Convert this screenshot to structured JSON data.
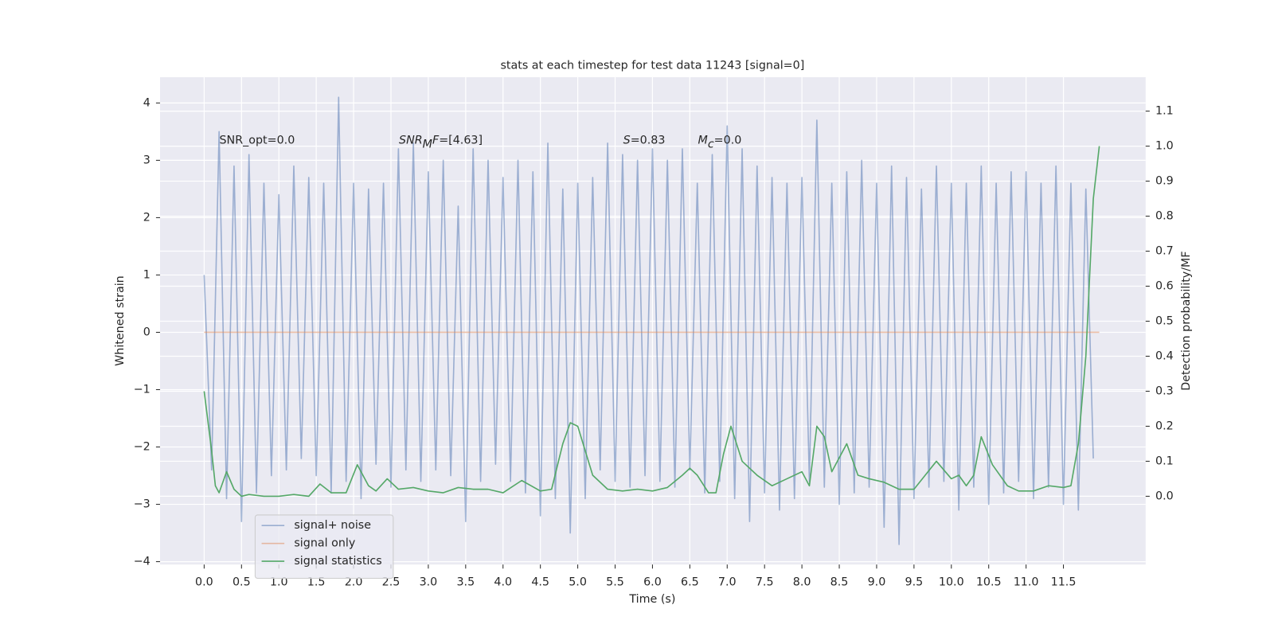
{
  "chart_data": {
    "type": "line",
    "title": "stats at each timestep for test data 11243 [signal=0]",
    "xlabel": "Time (s)",
    "ylabel": "Whitened strain",
    "y2label": "Detection probability/MF",
    "xlim": [
      -0.59,
      12.6
    ],
    "ylim": [
      -4.05,
      4.45
    ],
    "y2lim": [
      -0.195,
      1.197
    ],
    "xticks": [
      {
        "value": 0,
        "label": "0.0"
      },
      0.5,
      {
        "value": 1,
        "label": "1.0"
      },
      1.5,
      {
        "value": 2,
        "label": "2.0"
      },
      2.5,
      {
        "value": 3,
        "label": "3.0"
      },
      3.5,
      {
        "value": 4,
        "label": "4.0"
      },
      4.5,
      {
        "value": 5,
        "label": "5.0"
      },
      5.5,
      {
        "value": 6,
        "label": "6.0"
      },
      6.5,
      {
        "value": 7,
        "label": "7.0"
      },
      7.5,
      {
        "value": 8,
        "label": "8.0"
      },
      8.5,
      {
        "value": 9,
        "label": "9.0"
      },
      9.5,
      {
        "value": 10,
        "label": "10.0"
      },
      10.5,
      {
        "value": 11,
        "label": "11.0"
      },
      11.5
    ],
    "yticks": [
      {
        "value": -4,
        "label": "−4"
      },
      {
        "value": -3,
        "label": "−3"
      },
      {
        "value": -2,
        "label": "−2"
      },
      {
        "value": -1,
        "label": "−1"
      },
      0,
      1,
      2,
      3,
      4
    ],
    "y2ticks": [
      {
        "value": 0,
        "label": "0.0"
      },
      0.1,
      0.2,
      0.3,
      0.4,
      0.5,
      0.6,
      0.7,
      0.8,
      0.9,
      {
        "value": 1,
        "label": "1.0"
      },
      1.1
    ],
    "grid": true,
    "legend": "lower left",
    "annotations": [
      [
        {
          "text": "SNR_opt=0.0"
        }
      ],
      [
        {
          "text": "SNR",
          "style": "italic"
        },
        {
          "text": "M",
          "style": "italic-sub"
        },
        {
          "text": "F",
          "style": "italic"
        },
        {
          "text": "=[4.63]"
        }
      ],
      [
        {
          "text": "S",
          "style": "italic"
        },
        {
          "text": "=0.83"
        }
      ],
      [
        {
          "text": "M",
          "style": "italic"
        },
        {
          "text": "c",
          "style": "italic-sub"
        },
        {
          "text": "=0.0"
        }
      ]
    ],
    "series": [
      {
        "name": "signal+ noise",
        "color": "#4c72b0",
        "opacity": 0.5,
        "x": [
          0,
          0.1,
          0.2,
          0.3,
          0.4,
          0.5,
          0.6,
          0.7,
          0.8,
          0.9,
          1,
          1.1,
          1.2,
          1.3,
          1.4,
          1.5,
          1.6,
          1.7,
          1.8,
          1.9,
          2,
          2.1,
          2.2,
          2.3,
          2.4,
          2.5,
          2.6,
          2.7,
          2.8,
          2.9,
          3,
          3.1,
          3.2,
          3.3,
          3.4,
          3.5,
          3.6,
          3.7,
          3.8,
          3.9,
          4,
          4.1,
          4.2,
          4.3,
          4.4,
          4.5,
          4.6,
          4.7,
          4.8,
          4.9,
          5,
          5.1,
          5.2,
          5.3,
          5.4,
          5.5,
          5.6,
          5.7,
          5.8,
          5.9,
          6,
          6.1,
          6.2,
          6.3,
          6.4,
          6.5,
          6.6,
          6.7,
          6.8,
          6.9,
          7,
          7.1,
          7.2,
          7.3,
          7.4,
          7.5,
          7.6,
          7.7,
          7.8,
          7.9,
          8,
          8.1,
          8.2,
          8.3,
          8.4,
          8.5,
          8.6,
          8.7,
          8.8,
          8.9,
          9,
          9.1,
          9.2,
          9.3,
          9.4,
          9.5,
          9.6,
          9.7,
          9.8,
          9.9,
          10,
          10.1,
          10.2,
          10.3,
          10.4,
          10.5,
          10.6,
          10.7,
          10.8,
          10.9,
          11,
          11.1,
          11.2,
          11.3,
          11.4,
          11.5,
          11.6,
          11.7,
          11.8,
          11.9
        ],
        "values": [
          1.0,
          -2.4,
          3.5,
          -2.9,
          2.9,
          -3.3,
          3.1,
          -2.8,
          2.6,
          -2.5,
          2.4,
          -2.4,
          2.9,
          -2.2,
          2.7,
          -2.5,
          2.6,
          -2.8,
          4.1,
          -2.6,
          2.6,
          -2.9,
          2.5,
          -2.3,
          2.6,
          -2.7,
          3.2,
          -2.4,
          3.3,
          -2.6,
          2.8,
          -2.4,
          3.0,
          -2.5,
          2.2,
          -3.3,
          3.2,
          -2.6,
          3.0,
          -2.3,
          2.7,
          -2.6,
          3.0,
          -2.8,
          2.8,
          -3.2,
          3.3,
          -2.9,
          2.5,
          -3.5,
          2.6,
          -2.9,
          2.7,
          -2.4,
          3.3,
          -2.6,
          3.1,
          -2.7,
          3.0,
          -2.5,
          3.2,
          -2.6,
          3.0,
          -2.7,
          3.2,
          -2.4,
          2.6,
          -2.8,
          3.1,
          -2.6,
          3.6,
          -2.9,
          3.2,
          -3.3,
          2.9,
          -2.8,
          2.7,
          -3.1,
          2.6,
          -2.9,
          2.7,
          -2.6,
          3.7,
          -2.7,
          2.6,
          -3.0,
          2.8,
          -2.8,
          3.0,
          -2.7,
          2.6,
          -3.4,
          2.9,
          -3.7,
          2.7,
          -2.9,
          2.5,
          -2.7,
          2.9,
          -2.6,
          2.6,
          -3.1,
          2.6,
          -2.7,
          2.9,
          -3.0,
          2.6,
          -2.8,
          2.8,
          -2.6,
          2.8,
          -2.9,
          2.6,
          -2.7,
          2.9,
          -3.0,
          2.6,
          -3.1,
          2.5,
          -2.2
        ]
      },
      {
        "name": "signal only",
        "color": "#dd8452",
        "opacity": 0.5,
        "x": [
          0,
          11.98
        ],
        "values": [
          0,
          0
        ]
      },
      {
        "name": "signal statistics",
        "color": "#55a868",
        "axis": "y2",
        "x": [
          0,
          0.1,
          0.15,
          0.2,
          0.3,
          0.4,
          0.5,
          0.6,
          0.8,
          1.0,
          1.2,
          1.4,
          1.55,
          1.7,
          1.9,
          2.05,
          2.2,
          2.3,
          2.45,
          2.6,
          2.8,
          3.0,
          3.2,
          3.4,
          3.6,
          3.8,
          4.0,
          4.25,
          4.5,
          4.65,
          4.8,
          4.9,
          5.0,
          5.1,
          5.2,
          5.4,
          5.6,
          5.8,
          6.0,
          6.2,
          6.4,
          6.5,
          6.6,
          6.75,
          6.85,
          6.95,
          7.05,
          7.2,
          7.4,
          7.6,
          7.8,
          8.0,
          8.1,
          8.2,
          8.3,
          8.4,
          8.6,
          8.75,
          8.9,
          9.1,
          9.3,
          9.5,
          9.65,
          9.8,
          10.0,
          10.1,
          10.2,
          10.3,
          10.4,
          10.55,
          10.75,
          10.9,
          11.1,
          11.3,
          11.5,
          11.6,
          11.7,
          11.8,
          11.9,
          11.98
        ],
        "values": [
          0.3,
          0.13,
          0.03,
          0.01,
          0.07,
          0.02,
          0.0,
          0.005,
          0.0,
          0.0,
          0.005,
          0.0,
          0.035,
          0.01,
          0.01,
          0.09,
          0.03,
          0.015,
          0.05,
          0.02,
          0.025,
          0.015,
          0.01,
          0.025,
          0.02,
          0.02,
          0.01,
          0.045,
          0.015,
          0.02,
          0.15,
          0.21,
          0.2,
          0.13,
          0.06,
          0.02,
          0.015,
          0.02,
          0.015,
          0.025,
          0.06,
          0.08,
          0.06,
          0.01,
          0.01,
          0.12,
          0.2,
          0.1,
          0.06,
          0.03,
          0.05,
          0.07,
          0.03,
          0.2,
          0.17,
          0.07,
          0.15,
          0.06,
          0.05,
          0.04,
          0.02,
          0.02,
          0.06,
          0.1,
          0.05,
          0.06,
          0.03,
          0.06,
          0.17,
          0.09,
          0.03,
          0.015,
          0.015,
          0.03,
          0.025,
          0.03,
          0.15,
          0.4,
          0.85,
          1.0
        ]
      }
    ]
  }
}
